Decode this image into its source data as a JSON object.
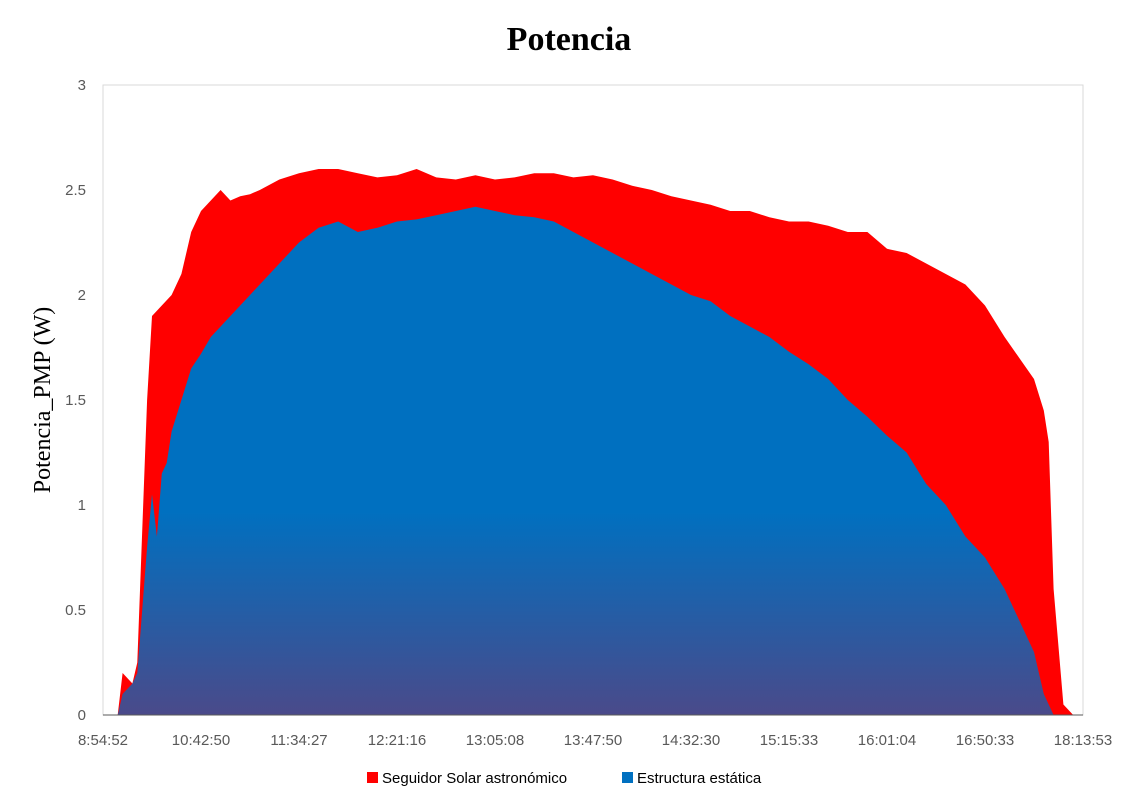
{
  "chart_data": {
    "type": "area",
    "title": "Potencia",
    "ylabel": "Potencia_PMP (W)",
    "xlabel": "",
    "ylim": [
      0,
      3
    ],
    "yticks": [
      "0",
      "0.5",
      "1",
      "1.5",
      "2",
      "2.5",
      "3"
    ],
    "xticks": [
      "8:54:52",
      "10:42:50",
      "11:34:27",
      "12:21:16",
      "13:05:08",
      "13:47:50",
      "14:32:30",
      "15:15:33",
      "16:01:04",
      "16:50:33",
      "18:13:53"
    ],
    "grid": false,
    "legend_position": "bottom",
    "series": [
      {
        "name": "Seguidor Solar astronómico",
        "color": "#ff0000",
        "x": [
          0,
          0.015,
          0.02,
          0.03,
          0.035,
          0.045,
          0.05,
          0.06,
          0.07,
          0.08,
          0.09,
          0.1,
          0.11,
          0.12,
          0.13,
          0.14,
          0.15,
          0.16,
          0.18,
          0.2,
          0.22,
          0.24,
          0.26,
          0.28,
          0.3,
          0.32,
          0.34,
          0.36,
          0.38,
          0.4,
          0.42,
          0.44,
          0.46,
          0.48,
          0.5,
          0.52,
          0.54,
          0.56,
          0.58,
          0.6,
          0.62,
          0.64,
          0.66,
          0.68,
          0.7,
          0.72,
          0.74,
          0.76,
          0.78,
          0.8,
          0.82,
          0.84,
          0.86,
          0.88,
          0.9,
          0.92,
          0.935,
          0.95,
          0.96,
          0.965,
          0.97,
          0.98,
          0.99,
          1.0
        ],
        "values": [
          0,
          0,
          0.2,
          0.15,
          0.25,
          1.5,
          1.9,
          1.95,
          2.0,
          2.1,
          2.3,
          2.4,
          2.45,
          2.5,
          2.45,
          2.47,
          2.48,
          2.5,
          2.55,
          2.58,
          2.6,
          2.6,
          2.58,
          2.56,
          2.57,
          2.6,
          2.56,
          2.55,
          2.57,
          2.55,
          2.56,
          2.58,
          2.58,
          2.56,
          2.57,
          2.55,
          2.52,
          2.5,
          2.47,
          2.45,
          2.43,
          2.4,
          2.4,
          2.37,
          2.35,
          2.35,
          2.33,
          2.3,
          2.3,
          2.22,
          2.2,
          2.15,
          2.1,
          2.05,
          1.95,
          1.8,
          1.7,
          1.6,
          1.45,
          1.3,
          0.6,
          0.05,
          0,
          0
        ]
      },
      {
        "name": "Estructura estática",
        "color": "#0070c0",
        "x": [
          0,
          0.015,
          0.02,
          0.03,
          0.035,
          0.045,
          0.05,
          0.055,
          0.06,
          0.065,
          0.07,
          0.08,
          0.09,
          0.1,
          0.11,
          0.12,
          0.13,
          0.14,
          0.15,
          0.16,
          0.18,
          0.2,
          0.22,
          0.24,
          0.26,
          0.28,
          0.3,
          0.32,
          0.34,
          0.36,
          0.38,
          0.4,
          0.42,
          0.44,
          0.46,
          0.48,
          0.5,
          0.52,
          0.54,
          0.56,
          0.58,
          0.6,
          0.62,
          0.64,
          0.66,
          0.68,
          0.7,
          0.72,
          0.74,
          0.76,
          0.78,
          0.8,
          0.82,
          0.84,
          0.86,
          0.88,
          0.9,
          0.92,
          0.935,
          0.95,
          0.96,
          0.97,
          0.98,
          0.99,
          1.0
        ],
        "values": [
          0,
          0,
          0.1,
          0.15,
          0.2,
          0.8,
          1.05,
          0.85,
          1.15,
          1.2,
          1.35,
          1.5,
          1.65,
          1.72,
          1.8,
          1.85,
          1.9,
          1.95,
          2.0,
          2.05,
          2.15,
          2.25,
          2.32,
          2.35,
          2.3,
          2.32,
          2.35,
          2.36,
          2.38,
          2.4,
          2.42,
          2.4,
          2.38,
          2.37,
          2.35,
          2.3,
          2.25,
          2.2,
          2.15,
          2.1,
          2.05,
          2.0,
          1.97,
          1.9,
          1.85,
          1.8,
          1.73,
          1.67,
          1.6,
          1.5,
          1.42,
          1.33,
          1.25,
          1.1,
          1.0,
          0.85,
          0.75,
          0.6,
          0.45,
          0.3,
          0.1,
          0,
          0,
          0,
          0
        ]
      }
    ]
  }
}
